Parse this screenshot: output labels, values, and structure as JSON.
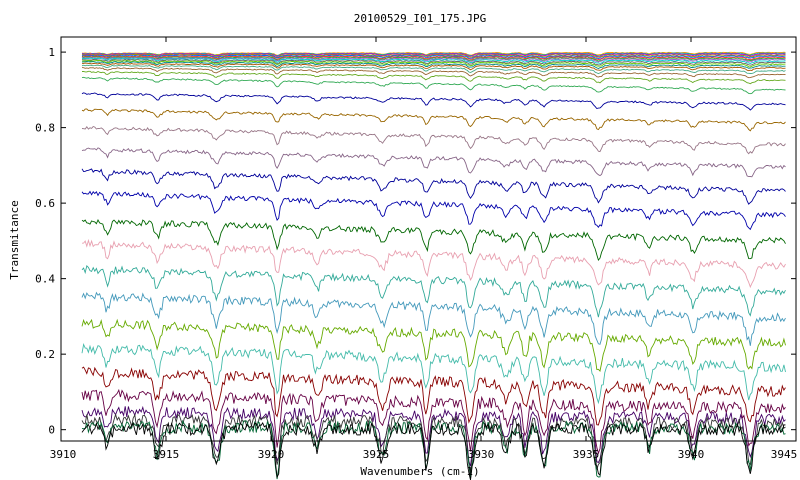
{
  "chart_data": {
    "type": "line",
    "title": "20100529_I01_175.JPG",
    "xlabel": "Wavenumbers (cm-1)",
    "ylabel": "Transmitance",
    "xlim": [
      3910,
      3945
    ],
    "ylim": [
      -0.03,
      1.04
    ],
    "x_range": [
      3911,
      3944.5
    ],
    "xticks": [
      3910,
      3915,
      3920,
      3925,
      3930,
      3935,
      3940,
      3945
    ],
    "yticks": [
      0,
      0.2,
      0.4,
      0.6,
      0.8,
      1
    ],
    "xtick_labels": [
      "3910",
      "3915",
      "3920",
      "3925",
      "3930",
      "3935",
      "3940",
      "3945"
    ],
    "ytick_labels": [
      "0",
      "0.2",
      "0.4",
      "0.6",
      "0.8",
      "1"
    ],
    "grid": false,
    "legend": "none",
    "absorption_lines_cm1": [
      3912.2,
      3914.6,
      3917.4,
      3920.3,
      3922.2,
      3925.3,
      3927.4,
      3929.5,
      3931.2,
      3932.1,
      3933.0,
      3935.6,
      3938.0,
      3940.1,
      3942.8
    ],
    "series": [
      {
        "start": 0.997,
        "end": 0.999,
        "color": "#ff9900"
      },
      {
        "start": 0.996,
        "end": 0.997,
        "color": "#00aaaa"
      },
      {
        "start": 0.995,
        "end": 0.995,
        "color": "#cc00cc"
      },
      {
        "start": 0.993,
        "end": 0.992,
        "color": "#999900"
      },
      {
        "start": 0.991,
        "end": 0.989,
        "color": "#0066ff"
      },
      {
        "start": 0.989,
        "end": 0.986,
        "color": "#ff3333"
      },
      {
        "start": 0.987,
        "end": 0.983,
        "color": "#33aa33"
      },
      {
        "start": 0.985,
        "end": 0.98,
        "color": "#9966cc"
      },
      {
        "start": 0.983,
        "end": 0.976,
        "color": "#00cccc"
      },
      {
        "start": 0.98,
        "end": 0.972,
        "color": "#666666"
      },
      {
        "start": 0.977,
        "end": 0.968,
        "color": "#66cc00"
      },
      {
        "start": 0.974,
        "end": 0.963,
        "color": "#008888"
      },
      {
        "start": 0.97,
        "end": 0.958,
        "color": "#aa5500"
      },
      {
        "start": 0.965,
        "end": 0.95,
        "color": "#44aa88"
      },
      {
        "start": 0.958,
        "end": 0.94,
        "color": "#996633"
      },
      {
        "start": 0.948,
        "end": 0.925,
        "color": "#66aa22"
      },
      {
        "start": 0.932,
        "end": 0.9,
        "color": "#33aa55"
      },
      {
        "start": 0.89,
        "end": 0.862,
        "color": "#000099"
      },
      {
        "start": 0.847,
        "end": 0.812,
        "color": "#996600"
      },
      {
        "start": 0.8,
        "end": 0.755,
        "color": "#997788"
      },
      {
        "start": 0.743,
        "end": 0.695,
        "color": "#886688"
      },
      {
        "start": 0.686,
        "end": 0.632,
        "color": "#000099"
      },
      {
        "start": 0.626,
        "end": 0.568,
        "color": "#0000aa"
      },
      {
        "start": 0.552,
        "end": 0.5,
        "color": "#006600"
      },
      {
        "start": 0.493,
        "end": 0.433,
        "color": "#e8a0b0"
      },
      {
        "start": 0.425,
        "end": 0.367,
        "color": "#33aa99"
      },
      {
        "start": 0.355,
        "end": 0.297,
        "color": "#4499bb"
      },
      {
        "start": 0.282,
        "end": 0.23,
        "color": "#66aa00"
      },
      {
        "start": 0.215,
        "end": 0.165,
        "color": "#44bbaa"
      },
      {
        "start": 0.152,
        "end": 0.102,
        "color": "#880000"
      },
      {
        "start": 0.092,
        "end": 0.055,
        "color": "#660044"
      },
      {
        "start": 0.048,
        "end": 0.028,
        "color": "#440066"
      },
      {
        "start": 0.025,
        "end": 0.015,
        "color": "#333333"
      },
      {
        "start": 0.008,
        "end": 0.004,
        "color": "#006633"
      },
      {
        "start": 0.002,
        "end": 0.001,
        "color": "#000000"
      }
    ]
  }
}
